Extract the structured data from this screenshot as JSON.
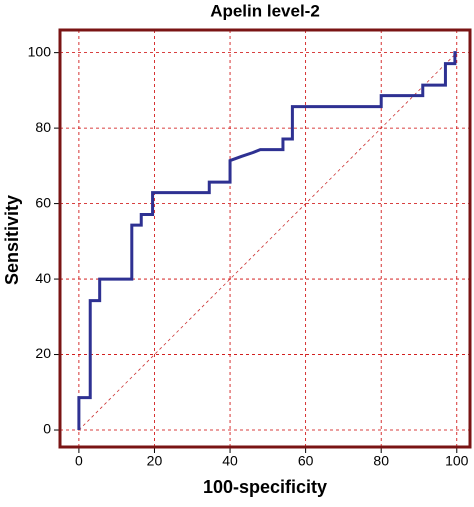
{
  "chart_data": {
    "type": "line",
    "title": "Apelin level-2",
    "x_label": "100-specificity",
    "y_label": "Sensitivity",
    "series": [
      {
        "name": "Apelin level-2",
        "color": "#2e3192",
        "x": [
          0,
          0,
          3,
          3,
          5.5,
          5.5,
          14,
          14,
          16.5,
          16.5,
          19.5,
          19.5,
          34.5,
          34.5,
          40,
          40,
          43,
          46,
          48,
          54,
          54,
          56.5,
          56.5,
          80,
          80,
          91,
          91,
          97,
          97,
          99.5,
          99.5,
          100
        ],
        "values": [
          0,
          8.6,
          8.6,
          34.3,
          34.3,
          40,
          40,
          54.3,
          54.3,
          57.1,
          57.1,
          62.9,
          62.9,
          65.7,
          65.7,
          71.4,
          72.5,
          73.5,
          74.3,
          74.3,
          77.1,
          77.1,
          85.7,
          85.7,
          88.6,
          88.6,
          91.4,
          91.4,
          97.1,
          97.1,
          100,
          100
        ]
      }
    ],
    "xlim": [
      -5,
      103.5
    ],
    "ylim": [
      -4.5,
      106
    ],
    "xticks": [
      0,
      20,
      40,
      60,
      80,
      100
    ],
    "yticks": [
      0,
      20,
      40,
      60,
      80,
      100
    ],
    "grid": true,
    "grid_color": "#cc0000",
    "frame_color": "#7a1414",
    "diagonal_color": "#cc3333"
  }
}
